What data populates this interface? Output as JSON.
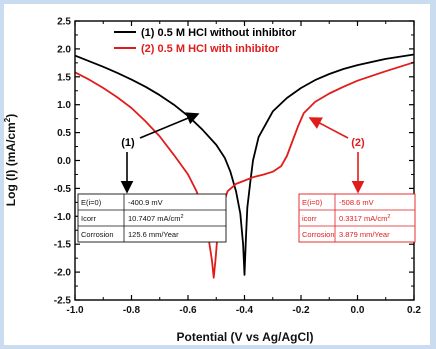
{
  "chart_data": {
    "type": "line",
    "title": "",
    "xlabel": "Potential (V vs Ag/AgCl)",
    "ylabel": "Log (I) (mA/cm",
    "ylabel_sup": "2",
    "ylabel_end": ")",
    "xlim": [
      -1.0,
      0.2
    ],
    "ylim": [
      -2.5,
      2.5
    ],
    "x_ticks": [
      -1.0,
      -0.8,
      -0.6,
      -0.4,
      -0.2,
      0.0,
      0.2
    ],
    "x_tick_labels": [
      "-1.0",
      "-0.8",
      "-0.6",
      "-0.4",
      "-0.2",
      "0.0",
      "0.2"
    ],
    "y_ticks": [
      -2.5,
      -2.0,
      -1.5,
      -1.0,
      -0.5,
      0.0,
      0.5,
      1.0,
      1.5,
      2.0,
      2.5
    ],
    "y_tick_labels": [
      "-2.5",
      "-2.0",
      "-1.5",
      "-1.0",
      "-0.5",
      "0.0",
      "0.5",
      "1.0",
      "1.5",
      "2.0",
      "2.5"
    ],
    "grid": false,
    "legend_position": "top-center",
    "series": [
      {
        "name": "(1) 0.5 M HCl without inhibitor",
        "color": "#000000",
        "points": [
          [
            -1.0,
            1.88
          ],
          [
            -0.95,
            1.78
          ],
          [
            -0.9,
            1.68
          ],
          [
            -0.85,
            1.57
          ],
          [
            -0.8,
            1.45
          ],
          [
            -0.75,
            1.32
          ],
          [
            -0.7,
            1.17
          ],
          [
            -0.65,
            1.0
          ],
          [
            -0.6,
            0.8
          ],
          [
            -0.55,
            0.56
          ],
          [
            -0.5,
            0.28
          ],
          [
            -0.47,
            0.05
          ],
          [
            -0.45,
            -0.2
          ],
          [
            -0.43,
            -0.55
          ],
          [
            -0.415,
            -0.95
          ],
          [
            -0.405,
            -1.5
          ],
          [
            -0.4,
            -2.05
          ],
          [
            -0.395,
            -1.4
          ],
          [
            -0.39,
            -0.85
          ],
          [
            -0.38,
            -0.4
          ],
          [
            -0.37,
            0.0
          ],
          [
            -0.35,
            0.42
          ],
          [
            -0.3,
            0.88
          ],
          [
            -0.25,
            1.12
          ],
          [
            -0.2,
            1.3
          ],
          [
            -0.15,
            1.44
          ],
          [
            -0.1,
            1.55
          ],
          [
            -0.05,
            1.64
          ],
          [
            0.0,
            1.71
          ],
          [
            0.1,
            1.82
          ],
          [
            0.2,
            1.9
          ]
        ]
      },
      {
        "name": "(2) 0.5 M HCl with inhibitor",
        "color": "#e21b1b",
        "points": [
          [
            -1.0,
            1.58
          ],
          [
            -0.95,
            1.45
          ],
          [
            -0.9,
            1.3
          ],
          [
            -0.85,
            1.13
          ],
          [
            -0.8,
            0.94
          ],
          [
            -0.75,
            0.7
          ],
          [
            -0.7,
            0.43
          ],
          [
            -0.65,
            0.1
          ],
          [
            -0.6,
            -0.25
          ],
          [
            -0.57,
            -0.55
          ],
          [
            -0.545,
            -0.9
          ],
          [
            -0.53,
            -1.3
          ],
          [
            -0.515,
            -1.8
          ],
          [
            -0.509,
            -2.1
          ],
          [
            -0.503,
            -1.8
          ],
          [
            -0.495,
            -1.3
          ],
          [
            -0.48,
            -0.85
          ],
          [
            -0.46,
            -0.55
          ],
          [
            -0.43,
            -0.42
          ],
          [
            -0.4,
            -0.36
          ],
          [
            -0.37,
            -0.3
          ],
          [
            -0.33,
            -0.25
          ],
          [
            -0.3,
            -0.2
          ],
          [
            -0.27,
            -0.1
          ],
          [
            -0.25,
            0.08
          ],
          [
            -0.23,
            0.35
          ],
          [
            -0.21,
            0.62
          ],
          [
            -0.19,
            0.85
          ],
          [
            -0.15,
            1.05
          ],
          [
            -0.1,
            1.2
          ],
          [
            -0.05,
            1.32
          ],
          [
            0.0,
            1.43
          ],
          [
            0.1,
            1.6
          ],
          [
            0.2,
            1.76
          ]
        ]
      }
    ],
    "annotations": {
      "label1": "(1)",
      "label2": "(2)"
    },
    "tables": [
      {
        "rows": [
          [
            "E(i=0)",
            "-400.9 mV"
          ],
          [
            "Icorr",
            "10.7407 mA/cm",
            "2"
          ],
          [
            "Corrosion",
            "125.6 mm/Year"
          ]
        ],
        "color": "#111111"
      },
      {
        "rows": [
          [
            "E(i=0)",
            "-508.6 mV"
          ],
          [
            "icorr",
            "0.3317 mA/cm",
            "2"
          ],
          [
            "Corrosion",
            "3.879 mm/Year"
          ]
        ],
        "color": "#e21b1b"
      }
    ]
  }
}
